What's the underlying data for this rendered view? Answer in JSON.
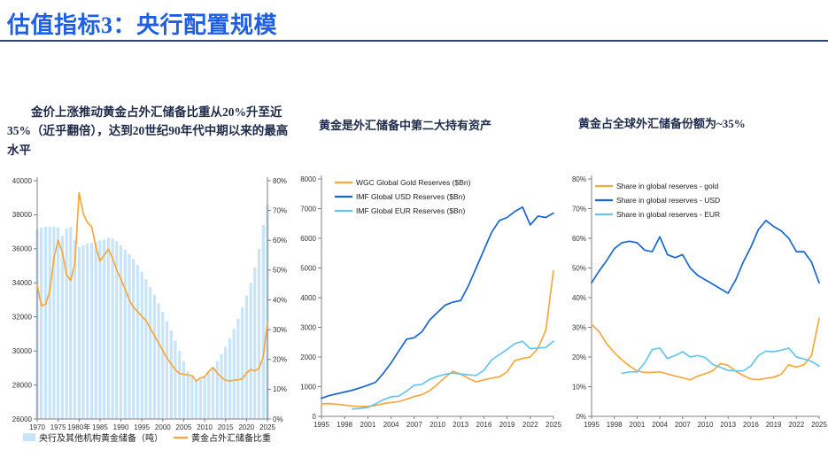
{
  "page": {
    "title": "估值指标3：央行配置规模"
  },
  "colors": {
    "title": "#1e5fe6",
    "divider": "#2c3e96",
    "heading_text": "#1e2a4a",
    "gold_line": "#f7a83c",
    "usd_line": "#1766d3",
    "eur_line": "#64c6ef",
    "bar_fill": "#c7e4f8",
    "axis": "#7f7f7f",
    "tick_text": "#333333"
  },
  "panels": {
    "left": {
      "description": "金价上涨推动黄金占外汇储备比重从20%升至近35%（近乎翻倍），达到20世纪90年代中期以来的最高水平"
    },
    "middle": {
      "title": "黄金是外汇储备中第二大持有资产"
    },
    "right": {
      "title": "黄金占全球外汇储备份额为~35%"
    }
  },
  "chart_data": [
    {
      "type": "combo",
      "x_start": 1970,
      "x_end": 2025,
      "x_ticks": [
        "1970",
        "1975",
        "1980年",
        "1985",
        "1990",
        "1995",
        "2000",
        "2005",
        "2010",
        "2015",
        "2020",
        "2025"
      ],
      "left_axis": {
        "min": 26000,
        "max": 40000,
        "step": 2000,
        "suffix": ""
      },
      "right_axis": {
        "min": 0,
        "max": 80,
        "step": 10,
        "suffix": "%"
      },
      "bars": {
        "name": "央行及其他机构黄金储备（吨）",
        "color": "#c7e4f8",
        "axis": "left",
        "values": [
          37150,
          37250,
          37300,
          37300,
          37300,
          37250,
          36750,
          37200,
          37300,
          36500,
          36100,
          36200,
          36300,
          36350,
          36400,
          36500,
          36550,
          36650,
          36600,
          36450,
          36200,
          35950,
          35700,
          35400,
          35050,
          34650,
          34200,
          33750,
          33300,
          32800,
          32300,
          31750,
          31200,
          30600,
          30000,
          29400,
          28800,
          28450,
          28300,
          28350,
          28500,
          28750,
          29050,
          29400,
          29800,
          30250,
          30750,
          31300,
          31900,
          32550,
          33250,
          34000,
          34900,
          36000,
          37400,
          38600
        ]
      },
      "lines": [
        {
          "name": "黄金占外汇储备比重",
          "color": "#f7a83c",
          "axis": "right",
          "x_start": 1970,
          "values": [
            45,
            38,
            38.5,
            43,
            54,
            60,
            56,
            48.5,
            46.5,
            52,
            76,
            69,
            66,
            64.5,
            58,
            53,
            55,
            57,
            54,
            50,
            47,
            43.5,
            40,
            37.5,
            36,
            34.5,
            33,
            30.5,
            28,
            25.5,
            23,
            20.5,
            18.5,
            16.5,
            15.3,
            15,
            14.8,
            14.5,
            12.8,
            13.8,
            14.2,
            16,
            17.3,
            15.5,
            14,
            13,
            12.8,
            13,
            13.2,
            13.4,
            15.5,
            16.6,
            16.2,
            17,
            21,
            32.5
          ]
        }
      ],
      "legend_position": "bottom"
    },
    {
      "type": "line",
      "x_start": 1995,
      "x_end": 2025,
      "x_ticks": [
        "1995",
        "1998",
        "2001",
        "2004",
        "2007",
        "2010",
        "2013",
        "2016",
        "2019",
        "2022",
        "2025"
      ],
      "left_axis": {
        "min": 0,
        "max": 8000,
        "step": 1000,
        "suffix": ""
      },
      "lines": [
        {
          "name": "WGC Global Gold Reserves ($Bn)",
          "color": "#f7a83c",
          "axis": "left",
          "x_start": 1995,
          "values": [
            420,
            430,
            410,
            380,
            350,
            335,
            330,
            370,
            430,
            470,
            500,
            580,
            670,
            730,
            870,
            1080,
            1320,
            1520,
            1420,
            1280,
            1160,
            1230,
            1290,
            1330,
            1500,
            1880,
            1950,
            2000,
            2300,
            2900,
            4900
          ]
        },
        {
          "name": "IMF Global USD Reserves ($Bn)",
          "color": "#1766d3",
          "axis": "left",
          "x_start": 1995,
          "values": [
            610,
            700,
            760,
            820,
            880,
            960,
            1050,
            1150,
            1450,
            1800,
            2200,
            2600,
            2650,
            2850,
            3250,
            3500,
            3750,
            3850,
            3900,
            4400,
            5000,
            5600,
            6200,
            6600,
            6700,
            6900,
            7050,
            6450,
            6750,
            6700,
            6850
          ]
        },
        {
          "name": "IMF Global EUR Reserves ($Bn)",
          "color": "#64c6ef",
          "axis": "left",
          "x_start": 1999,
          "values": [
            250,
            270,
            300,
            420,
            560,
            660,
            680,
            850,
            1050,
            1080,
            1250,
            1350,
            1420,
            1460,
            1430,
            1400,
            1380,
            1550,
            1900,
            2080,
            2250,
            2450,
            2530,
            2280,
            2300,
            2320,
            2530
          ]
        }
      ],
      "legend_position": "topleft"
    },
    {
      "type": "line",
      "x_start": 1995,
      "x_end": 2025,
      "x_ticks": [
        "1995",
        "1998",
        "2001",
        "2004",
        "2007",
        "2010",
        "2013",
        "2016",
        "2019",
        "2022",
        "2025"
      ],
      "left_axis": {
        "min": 0,
        "max": 80,
        "step": 10,
        "suffix": "%"
      },
      "lines": [
        {
          "name": "Share in global reserves - gold",
          "color": "#f7a83c",
          "axis": "left",
          "x_start": 1995,
          "values": [
            31,
            28.5,
            24.5,
            21.5,
            19,
            17,
            15.3,
            14.8,
            14.8,
            15,
            14.3,
            13.6,
            13,
            12.3,
            13.6,
            14.4,
            15.4,
            17.8,
            17.2,
            15.2,
            13.8,
            12.6,
            12.4,
            12.8,
            13.2,
            14.2,
            17.4,
            16.6,
            17.4,
            20.5,
            33
          ]
        },
        {
          "name": "Share in global reserves - USD",
          "color": "#1766d3",
          "axis": "left",
          "x_start": 1995,
          "values": [
            45,
            49,
            52.5,
            56.5,
            58.5,
            59,
            58.5,
            56,
            55.5,
            60.5,
            54.5,
            53.5,
            54.5,
            50,
            47.5,
            46,
            44.5,
            43,
            41.5,
            46,
            52,
            57,
            63,
            66,
            64,
            62.5,
            60,
            55.5,
            55.5,
            52,
            45
          ]
        },
        {
          "name": "Share in global reserves - EUR",
          "color": "#64c6ef",
          "axis": "left",
          "x_start": 1999,
          "values": [
            14.5,
            15,
            15,
            18,
            22.5,
            23,
            19.5,
            20.5,
            21.8,
            20,
            20.5,
            19.8,
            17.5,
            16.5,
            15.5,
            15.3,
            15.3,
            17,
            20.5,
            22,
            21.8,
            22.3,
            23,
            20,
            19.3,
            18.5,
            17
          ]
        }
      ],
      "legend_position": "topleft"
    }
  ]
}
